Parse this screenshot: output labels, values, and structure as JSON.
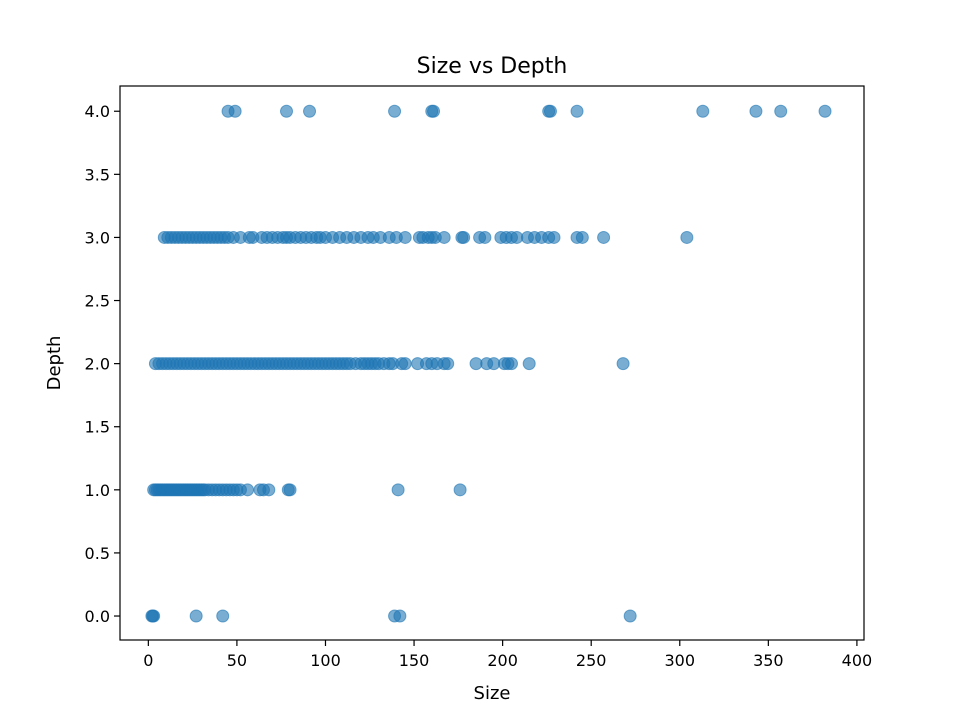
{
  "chart_data": {
    "type": "scatter",
    "title": "Size vs Depth",
    "xlabel": "Size",
    "ylabel": "Depth",
    "xlim": [
      -16,
      404
    ],
    "ylim": [
      -0.19,
      4.2
    ],
    "xticks": [
      0,
      50,
      100,
      150,
      200,
      250,
      300,
      350,
      400
    ],
    "xtick_labels": [
      "0",
      "50",
      "100",
      "150",
      "200",
      "250",
      "300",
      "350",
      "400"
    ],
    "yticks": [
      0.0,
      0.5,
      1.0,
      1.5,
      2.0,
      2.5,
      3.0,
      3.5,
      4.0
    ],
    "ytick_labels": [
      "0.0",
      "0.5",
      "1.0",
      "1.5",
      "2.0",
      "2.5",
      "3.0",
      "3.5",
      "4.0"
    ],
    "grid": false,
    "marker_color": "#1f77b4",
    "marker_alpha": 0.6,
    "series": [
      {
        "points": [
          [
            2,
            0
          ],
          [
            3,
            0
          ],
          [
            2.5,
            0
          ],
          [
            27,
            0
          ],
          [
            42,
            0
          ],
          [
            139,
            0
          ],
          [
            142,
            0
          ],
          [
            272,
            0
          ],
          [
            3,
            1
          ],
          [
            4,
            1
          ],
          [
            5,
            1
          ],
          [
            6,
            1
          ],
          [
            7,
            1
          ],
          [
            8,
            1
          ],
          [
            9,
            1
          ],
          [
            10,
            1
          ],
          [
            11,
            1
          ],
          [
            12,
            1
          ],
          [
            13,
            1
          ],
          [
            14,
            1
          ],
          [
            15,
            1
          ],
          [
            16,
            1
          ],
          [
            17,
            1
          ],
          [
            18,
            1
          ],
          [
            19,
            1
          ],
          [
            20,
            1
          ],
          [
            21,
            1
          ],
          [
            22,
            1
          ],
          [
            23,
            1
          ],
          [
            24,
            1
          ],
          [
            25,
            1
          ],
          [
            26,
            1
          ],
          [
            27,
            1
          ],
          [
            28,
            1
          ],
          [
            29,
            1
          ],
          [
            30,
            1
          ],
          [
            31,
            1
          ],
          [
            32,
            1
          ],
          [
            34,
            1
          ],
          [
            36,
            1
          ],
          [
            38,
            1
          ],
          [
            40,
            1
          ],
          [
            42,
            1
          ],
          [
            44,
            1
          ],
          [
            46,
            1
          ],
          [
            48,
            1
          ],
          [
            50,
            1
          ],
          [
            52,
            1
          ],
          [
            56,
            1
          ],
          [
            63,
            1
          ],
          [
            65,
            1
          ],
          [
            68,
            1
          ],
          [
            79,
            1
          ],
          [
            80,
            1
          ],
          [
            141,
            1
          ],
          [
            176,
            1
          ],
          [
            4,
            2
          ],
          [
            6,
            2
          ],
          [
            8,
            2
          ],
          [
            10,
            2
          ],
          [
            12,
            2
          ],
          [
            14,
            2
          ],
          [
            16,
            2
          ],
          [
            18,
            2
          ],
          [
            20,
            2
          ],
          [
            22,
            2
          ],
          [
            24,
            2
          ],
          [
            26,
            2
          ],
          [
            28,
            2
          ],
          [
            30,
            2
          ],
          [
            32,
            2
          ],
          [
            34,
            2
          ],
          [
            36,
            2
          ],
          [
            38,
            2
          ],
          [
            40,
            2
          ],
          [
            42,
            2
          ],
          [
            44,
            2
          ],
          [
            46,
            2
          ],
          [
            48,
            2
          ],
          [
            50,
            2
          ],
          [
            52,
            2
          ],
          [
            54,
            2
          ],
          [
            56,
            2
          ],
          [
            58,
            2
          ],
          [
            60,
            2
          ],
          [
            62,
            2
          ],
          [
            64,
            2
          ],
          [
            66,
            2
          ],
          [
            68,
            2
          ],
          [
            70,
            2
          ],
          [
            72,
            2
          ],
          [
            74,
            2
          ],
          [
            76,
            2
          ],
          [
            78,
            2
          ],
          [
            80,
            2
          ],
          [
            82,
            2
          ],
          [
            84,
            2
          ],
          [
            86,
            2
          ],
          [
            88,
            2
          ],
          [
            90,
            2
          ],
          [
            92,
            2
          ],
          [
            94,
            2
          ],
          [
            96,
            2
          ],
          [
            98,
            2
          ],
          [
            100,
            2
          ],
          [
            102,
            2
          ],
          [
            104,
            2
          ],
          [
            106,
            2
          ],
          [
            108,
            2
          ],
          [
            110,
            2
          ],
          [
            112,
            2
          ],
          [
            114,
            2
          ],
          [
            117,
            2
          ],
          [
            120,
            2
          ],
          [
            122,
            2
          ],
          [
            124,
            2
          ],
          [
            126,
            2
          ],
          [
            128,
            2
          ],
          [
            130,
            2
          ],
          [
            133,
            2
          ],
          [
            136,
            2
          ],
          [
            138,
            2
          ],
          [
            143,
            2
          ],
          [
            145,
            2
          ],
          [
            152,
            2
          ],
          [
            157,
            2
          ],
          [
            160,
            2
          ],
          [
            163,
            2
          ],
          [
            167,
            2
          ],
          [
            169,
            2
          ],
          [
            185,
            2
          ],
          [
            191,
            2
          ],
          [
            195,
            2
          ],
          [
            201,
            2
          ],
          [
            203,
            2
          ],
          [
            205,
            2
          ],
          [
            215,
            2
          ],
          [
            268,
            2
          ],
          [
            9,
            3
          ],
          [
            11,
            3
          ],
          [
            13,
            3
          ],
          [
            15,
            3
          ],
          [
            17,
            3
          ],
          [
            19,
            3
          ],
          [
            21,
            3
          ],
          [
            23,
            3
          ],
          [
            25,
            3
          ],
          [
            27,
            3
          ],
          [
            29,
            3
          ],
          [
            31,
            3
          ],
          [
            33,
            3
          ],
          [
            35,
            3
          ],
          [
            37,
            3
          ],
          [
            39,
            3
          ],
          [
            41,
            3
          ],
          [
            43,
            3
          ],
          [
            45,
            3
          ],
          [
            48,
            3
          ],
          [
            52,
            3
          ],
          [
            57,
            3
          ],
          [
            59,
            3
          ],
          [
            64,
            3
          ],
          [
            67,
            3
          ],
          [
            70,
            3
          ],
          [
            73,
            3
          ],
          [
            76,
            3
          ],
          [
            78,
            3
          ],
          [
            80,
            3
          ],
          [
            83,
            3
          ],
          [
            86,
            3
          ],
          [
            89,
            3
          ],
          [
            92,
            3
          ],
          [
            95,
            3
          ],
          [
            97,
            3
          ],
          [
            100,
            3
          ],
          [
            104,
            3
          ],
          [
            108,
            3
          ],
          [
            112,
            3
          ],
          [
            116,
            3
          ],
          [
            120,
            3
          ],
          [
            124,
            3
          ],
          [
            127,
            3
          ],
          [
            131,
            3
          ],
          [
            136,
            3
          ],
          [
            140,
            3
          ],
          [
            145,
            3
          ],
          [
            153,
            3
          ],
          [
            155,
            3
          ],
          [
            158,
            3
          ],
          [
            160,
            3
          ],
          [
            162,
            3
          ],
          [
            167,
            3
          ],
          [
            177,
            3
          ],
          [
            178,
            3
          ],
          [
            187,
            3
          ],
          [
            190,
            3
          ],
          [
            199,
            3
          ],
          [
            202,
            3
          ],
          [
            205,
            3
          ],
          [
            208,
            3
          ],
          [
            214,
            3
          ],
          [
            218,
            3
          ],
          [
            222,
            3
          ],
          [
            226,
            3
          ],
          [
            229,
            3
          ],
          [
            242,
            3
          ],
          [
            245,
            3
          ],
          [
            257,
            3
          ],
          [
            304,
            3
          ],
          [
            45,
            4
          ],
          [
            49,
            4
          ],
          [
            78,
            4
          ],
          [
            91,
            4
          ],
          [
            139,
            4
          ],
          [
            160,
            4
          ],
          [
            161,
            4
          ],
          [
            226,
            4
          ],
          [
            227,
            4
          ],
          [
            242,
            4
          ],
          [
            313,
            4
          ],
          [
            343,
            4
          ],
          [
            357,
            4
          ],
          [
            382,
            4
          ]
        ]
      }
    ]
  }
}
